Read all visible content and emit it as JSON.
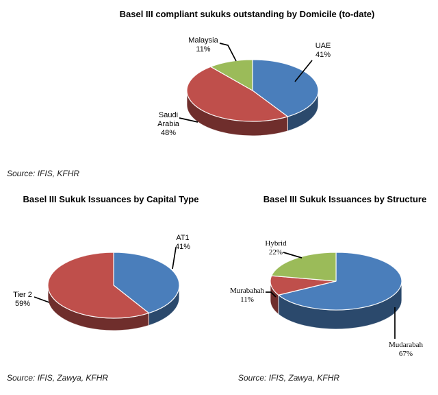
{
  "chart_data": [
    {
      "type": "pie",
      "effect": "3d",
      "title": "Basel III compliant sukuks outstanding by Domicile (to-date)",
      "source": "Source: IFIS, KFHR",
      "direction": "clockwise",
      "start_angle_deg": 0,
      "legend": "none",
      "slices": [
        {
          "label": "UAE",
          "pct": 41,
          "color": "#4a7ebb"
        },
        {
          "label": "Saudi Arabia",
          "pct": 48,
          "color": "#bf4f4b"
        },
        {
          "label": "Malaysia",
          "pct": 11,
          "color": "#9bbb59"
        }
      ]
    },
    {
      "type": "pie",
      "effect": "3d",
      "title": "Basel III Sukuk Issuances by Capital Type",
      "source": "Source: IFIS, Zawya, KFHR",
      "direction": "clockwise",
      "start_angle_deg": 0,
      "legend": "none",
      "slices": [
        {
          "label": "AT1",
          "pct": 41,
          "color": "#4a7ebb"
        },
        {
          "label": "Tier 2",
          "pct": 59,
          "color": "#bf4f4b"
        }
      ]
    },
    {
      "type": "pie",
      "effect": "3d",
      "title": "Basel III Sukuk Issuances by Structure",
      "source": "Source: IFIS, Zawya, KFHR",
      "direction": "clockwise",
      "start_angle_deg": 0,
      "legend": "none",
      "slices": [
        {
          "label": "Mudarabah",
          "pct": 67,
          "color": "#4a7ebb"
        },
        {
          "label": "Murabahah",
          "pct": 11,
          "color": "#bf4f4b"
        },
        {
          "label": "Hybrid",
          "pct": 22,
          "color": "#9bbb59"
        }
      ]
    }
  ]
}
